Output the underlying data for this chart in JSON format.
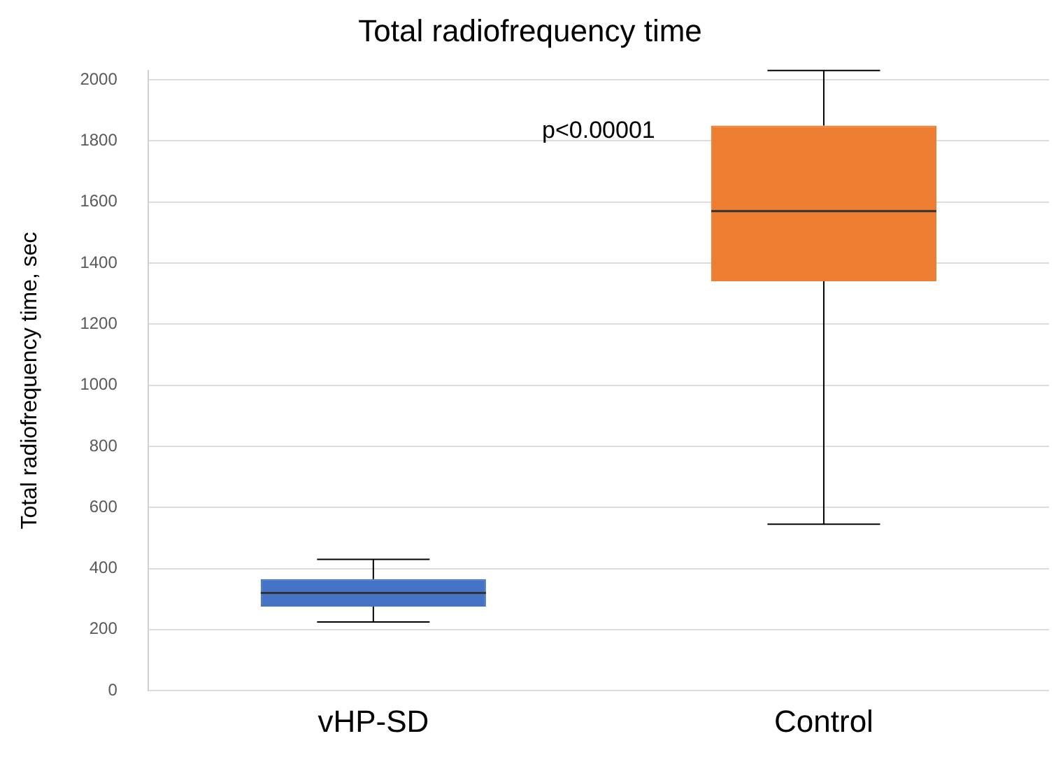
{
  "chart_data": {
    "type": "box",
    "title": "Total radiofrequency time",
    "ylabel": "Total radiofrequency time, sec",
    "categories": [
      "vHP-SD",
      "Control"
    ],
    "colors": [
      "#4472c4",
      "#ed7d31"
    ],
    "boxes": [
      {
        "low": 225,
        "q1": 275,
        "median": 320,
        "q3": 365,
        "high": 430
      },
      {
        "low": 545,
        "q1": 1340,
        "median": 1570,
        "q3": 1850,
        "high": 2030
      }
    ],
    "ylim": [
      0,
      2030
    ],
    "yticks": [
      0,
      200,
      400,
      600,
      800,
      1000,
      1200,
      1400,
      1600,
      1800,
      2000
    ],
    "grid": "y",
    "legend": false,
    "annotations": [
      "p<0.00001"
    ]
  }
}
